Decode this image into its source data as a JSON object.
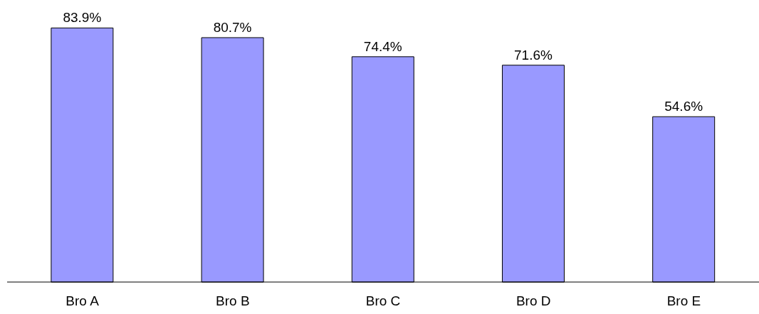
{
  "chart_data": {
    "type": "bar",
    "categories": [
      "Bro A",
      "Bro B",
      "Bro C",
      "Bro D",
      "Bro E"
    ],
    "values": [
      83.9,
      80.7,
      74.4,
      71.6,
      54.6
    ],
    "value_labels": [
      "83.9%",
      "80.7%",
      "74.4%",
      "71.6%",
      "54.6%"
    ],
    "color": "#9999ff"
  }
}
